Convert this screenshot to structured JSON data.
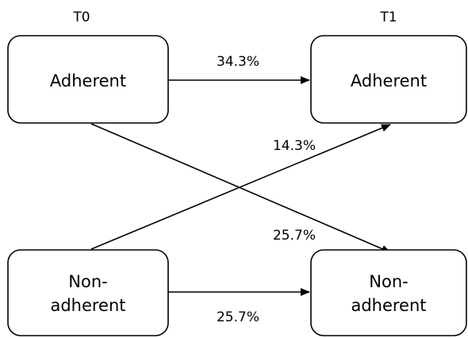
{
  "columns": {
    "left": "T0",
    "right": "T1"
  },
  "nodes": {
    "t0_adherent": {
      "lines": [
        "Adherent"
      ]
    },
    "t1_adherent": {
      "lines": [
        "Adherent"
      ]
    },
    "t0_nonadherent": {
      "lines": [
        "Non-",
        "adherent"
      ]
    },
    "t1_nonadherent": {
      "lines": [
        "Non-",
        "adherent"
      ]
    }
  },
  "edges": {
    "adherent_to_adherent": {
      "label": "34.3%"
    },
    "nonadherent_to_adherent": {
      "label": "14.3%"
    },
    "adherent_to_nonadherent": {
      "label": "25.7%"
    },
    "nonadherent_to_nonadherent": {
      "label": "25.7%"
    }
  },
  "colors": {
    "stroke": "#000000",
    "background": "#ffffff"
  }
}
